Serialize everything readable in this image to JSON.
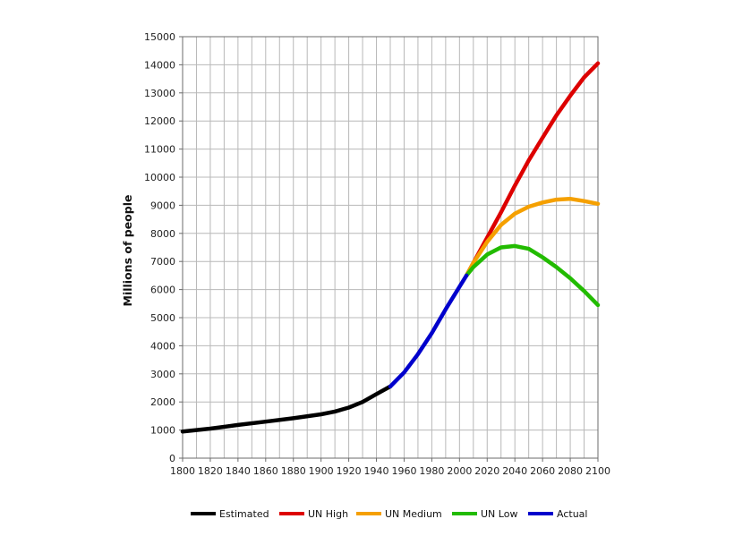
{
  "chart_data": {
    "type": "line",
    "title": "",
    "xlabel": "",
    "ylabel": "Millions of people",
    "xlim": [
      1800,
      2100
    ],
    "ylim": [
      0,
      15000
    ],
    "x_ticks": [
      "1800",
      "1820",
      "1840",
      "1860",
      "1880",
      "1900",
      "1920",
      "1940",
      "1960",
      "1980",
      "2000",
      "2020",
      "2040",
      "2060",
      "2080",
      "2100"
    ],
    "y_ticks": [
      "0",
      "1000",
      "2000",
      "3000",
      "4000",
      "5000",
      "6000",
      "7000",
      "8000",
      "9000",
      "10000",
      "11000",
      "12000",
      "13000",
      "14000",
      "15000"
    ],
    "grid": true,
    "legend_position": "bottom",
    "series": [
      {
        "name": "Estimated",
        "color": "#000000",
        "points": [
          [
            1800,
            950
          ],
          [
            1820,
            1050
          ],
          [
            1840,
            1180
          ],
          [
            1860,
            1300
          ],
          [
            1880,
            1420
          ],
          [
            1900,
            1560
          ],
          [
            1910,
            1660
          ],
          [
            1920,
            1800
          ],
          [
            1930,
            2000
          ],
          [
            1940,
            2280
          ],
          [
            1950,
            2550
          ]
        ]
      },
      {
        "name": "UN High",
        "color": "#dd0000",
        "points": [
          [
            2005,
            6500
          ],
          [
            2020,
            7850
          ],
          [
            2030,
            8750
          ],
          [
            2040,
            9700
          ],
          [
            2050,
            10600
          ],
          [
            2060,
            11400
          ],
          [
            2070,
            12200
          ],
          [
            2080,
            12900
          ],
          [
            2090,
            13550
          ],
          [
            2100,
            14050
          ]
        ]
      },
      {
        "name": "UN Medium",
        "color": "#f5a000",
        "points": [
          [
            2005,
            6500
          ],
          [
            2010,
            6950
          ],
          [
            2020,
            7700
          ],
          [
            2030,
            8300
          ],
          [
            2040,
            8700
          ],
          [
            2050,
            8950
          ],
          [
            2060,
            9100
          ],
          [
            2070,
            9200
          ],
          [
            2080,
            9230
          ],
          [
            2090,
            9150
          ],
          [
            2100,
            9050
          ]
        ]
      },
      {
        "name": "UN Low",
        "color": "#22bb00",
        "points": [
          [
            2005,
            6500
          ],
          [
            2010,
            6800
          ],
          [
            2020,
            7250
          ],
          [
            2030,
            7500
          ],
          [
            2040,
            7550
          ],
          [
            2050,
            7450
          ],
          [
            2060,
            7150
          ],
          [
            2070,
            6800
          ],
          [
            2080,
            6400
          ],
          [
            2090,
            5950
          ],
          [
            2100,
            5450
          ]
        ]
      },
      {
        "name": "Actual",
        "color": "#0000cc",
        "points": [
          [
            1950,
            2550
          ],
          [
            1960,
            3050
          ],
          [
            1970,
            3700
          ],
          [
            1980,
            4450
          ],
          [
            1990,
            5300
          ],
          [
            2000,
            6100
          ],
          [
            2005,
            6500
          ]
        ]
      }
    ]
  }
}
